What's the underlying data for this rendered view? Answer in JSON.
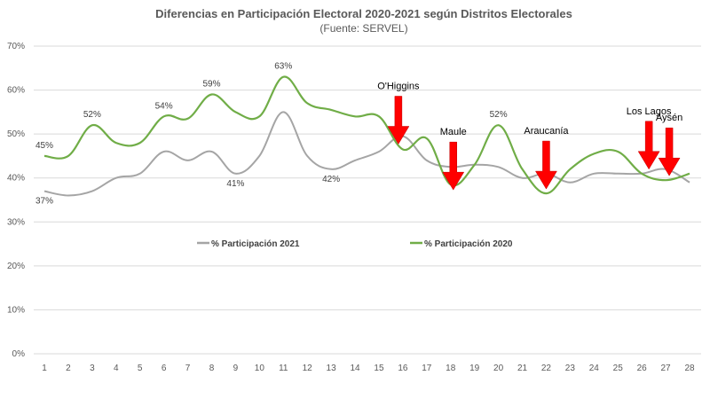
{
  "chart_data": {
    "type": "line",
    "title": "Diferencias en Participación  Electoral 2020-2021 según Distritos Electorales",
    "subtitle": "(Fuente: SERVEL)",
    "categories": [
      "1",
      "2",
      "3",
      "4",
      "5",
      "6",
      "7",
      "8",
      "9",
      "10",
      "11",
      "12",
      "13",
      "14",
      "15",
      "16",
      "17",
      "18",
      "19",
      "20",
      "21",
      "22",
      "23",
      "24",
      "25",
      "26",
      "27",
      "28"
    ],
    "ylim": [
      0,
      70
    ],
    "yticks": [
      "0%",
      "10%",
      "20%",
      "30%",
      "40%",
      "50%",
      "60%",
      "70%"
    ],
    "grid": true,
    "legend_position": "bottom-center",
    "series": [
      {
        "name": "% Participación 2021",
        "color": "#a5a5a5",
        "values": [
          37,
          36,
          37,
          40,
          41,
          46,
          44,
          46,
          41,
          45,
          55,
          45,
          42,
          44,
          46,
          49.5,
          44,
          42.5,
          43,
          42.5,
          40,
          41,
          39,
          41,
          41,
          41,
          42,
          39
        ]
      },
      {
        "name": "% Participación 2020",
        "color": "#70ad47",
        "values": [
          45,
          45,
          52,
          48,
          48,
          54,
          53.5,
          59,
          55,
          54,
          63,
          57,
          55.5,
          54,
          54,
          46.5,
          49,
          38.5,
          43,
          52,
          42,
          36.5,
          42,
          45.5,
          46,
          41,
          39.5,
          41
        ]
      }
    ],
    "data_labels": [
      {
        "text": "45%",
        "index": 0,
        "value": 45
      },
      {
        "text": "52%",
        "index": 2,
        "value": 52
      },
      {
        "text": "54%",
        "index": 5,
        "value": 54
      },
      {
        "text": "59%",
        "index": 7,
        "value": 59
      },
      {
        "text": "63%",
        "index": 10,
        "value": 63
      },
      {
        "text": "52%",
        "index": 19,
        "value": 52
      },
      {
        "text": "37%",
        "index": 0,
        "value": 37
      },
      {
        "text": "41%",
        "index": 8,
        "value": 41
      },
      {
        "text": "42%",
        "index": 12,
        "value": 42
      }
    ],
    "annotations": [
      {
        "text": "O'Higgins",
        "index": 15
      },
      {
        "text": "Maule",
        "index": 17
      },
      {
        "text": "Araucanía",
        "index": 21
      },
      {
        "text": "Los Lagos",
        "index": 25
      },
      {
        "text": "Aysén",
        "index": 26
      }
    ]
  }
}
